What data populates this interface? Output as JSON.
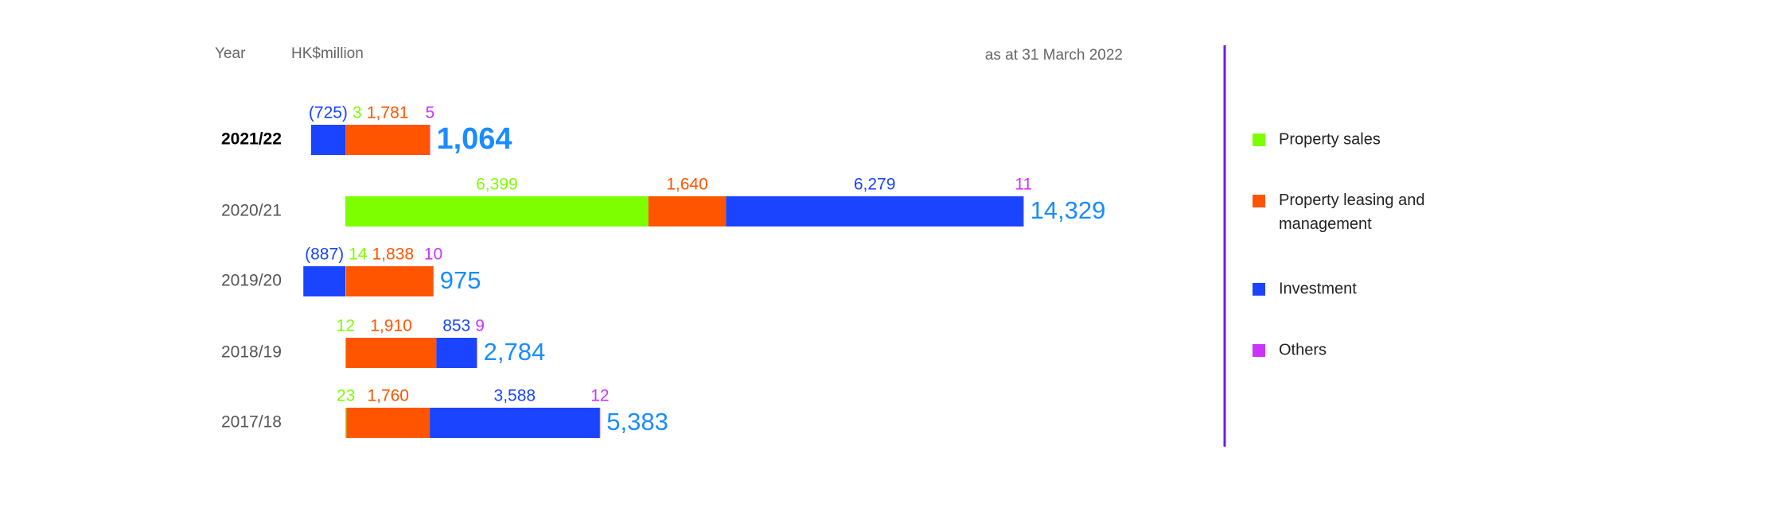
{
  "chart_data": {
    "type": "stacked-bar-horizontal",
    "year_header": "Year",
    "unit_label": "HK$million",
    "date_note": "as at 31 March 2022",
    "categories": [
      "2021/22",
      "2020/21",
      "2019/20",
      "2018/19",
      "2017/18"
    ],
    "series": [
      {
        "name": "Property sales",
        "color": "#7dff00",
        "values": [
          3,
          6399,
          14,
          12,
          23
        ],
        "value_labels": [
          "3",
          "6,399",
          "14",
          "12",
          "23"
        ]
      },
      {
        "name": "Property leasing and management",
        "color": "#ff5500",
        "values": [
          1781,
          1640,
          1838,
          1910,
          1760
        ],
        "value_labels": [
          "1,781",
          "1,640",
          "1,838",
          "1,910",
          "1,760"
        ]
      },
      {
        "name": "Investment",
        "color": "#1a44ff",
        "values": [
          -725,
          6279,
          -887,
          853,
          3588
        ],
        "value_labels": [
          "(725)",
          "6,279",
          "(887)",
          "853",
          "3,588"
        ]
      },
      {
        "name": "Others",
        "color": "#cc33ff",
        "values": [
          5,
          11,
          10,
          9,
          12
        ],
        "value_labels": [
          "5",
          "11",
          "10",
          "9",
          "12"
        ]
      }
    ],
    "totals": [
      1064,
      14329,
      975,
      2784,
      5383
    ],
    "total_labels": [
      "1,064",
      "14,329",
      "975",
      "2,784",
      "5,383"
    ],
    "total_color": "#1a8cff"
  }
}
